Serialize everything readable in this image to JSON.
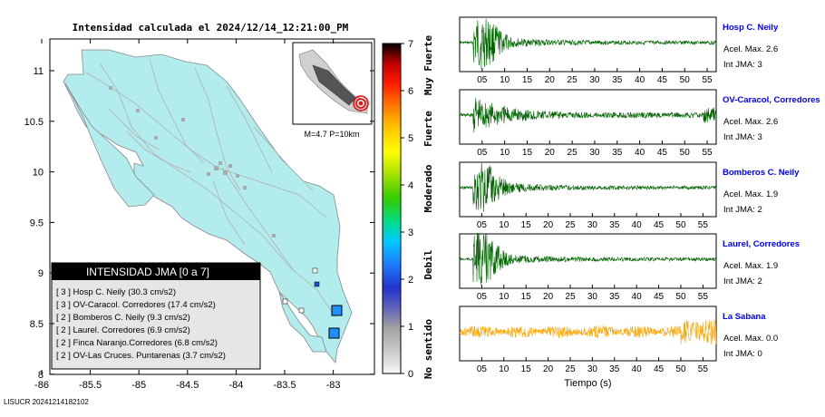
{
  "map": {
    "title": "Intensidad calculada el 2024/12/14_12:21:00_PM",
    "x_ticks": [
      "-86",
      "-85.5",
      "-85",
      "-84.5",
      "-84",
      "-83.5",
      "-83"
    ],
    "y_ticks": [
      "11",
      "10.5",
      "10",
      "9.5",
      "9",
      "8.5",
      "8"
    ],
    "inset_label": "M=4.7 P=10km",
    "legend_title": "INTENSIDAD JMA [0 a 7]",
    "legend_rows": [
      "[ 3 ]  Hosp C. Neily (30.3 cm/s2)",
      "[ 3 ]  OV-Caracol. Corredores (17.4 cm/s2)",
      "[ 2 ]  Bomberos C. Neily (9.3 cm/s2)",
      "[ 2 ]  Laurel. Corredores (6.9 cm/s2)",
      "[ 2 ]  Finca Naranjo.Corredores (6.8 cm/s2)",
      "[ 2 ]  OV-Las Cruces. Puntarenas (3.7 cm/s2)"
    ],
    "footer": "LISUCR 20241214182102",
    "colors": {
      "land": "#b3ecec",
      "roads": "#b0b0b0",
      "station": "#1e90ff"
    }
  },
  "colorbar": {
    "ticks": [
      "0",
      "1",
      "2",
      "3",
      "4",
      "5",
      "6",
      "7"
    ],
    "class_labels": [
      "No sentido",
      "Debil",
      "Moderado",
      "Fuerte",
      "Muy Fuerte"
    ]
  },
  "chart_data": [
    {
      "type": "line",
      "name": "Hosp C. Neily",
      "color": "#006400",
      "x_tick_labels": [
        "05",
        "10",
        "15",
        "20",
        "25",
        "30",
        "35",
        "40",
        "45",
        "50",
        "55"
      ],
      "xlim": [
        0,
        57
      ],
      "accel_text": "Acel. Max. 2.6",
      "jma_text": "Int JMA: 3"
    },
    {
      "type": "line",
      "name": "OV-Caracol, Corredores",
      "color": "#006400",
      "x_tick_labels": [
        "05",
        "10",
        "15",
        "20",
        "25",
        "30",
        "35",
        "40",
        "45",
        "50",
        "55"
      ],
      "xlim": [
        0,
        57
      ],
      "accel_text": "Acel. Max. 2.6",
      "jma_text": "Int JMA: 3"
    },
    {
      "type": "line",
      "name": "Bomberos C. Neily",
      "color": "#006400",
      "x_tick_labels": [
        "05",
        "10",
        "15",
        "20",
        "25",
        "30",
        "35",
        "40",
        "45",
        "50",
        "55"
      ],
      "xlim": [
        0,
        58
      ],
      "accel_text": "Acel. Max. 1.9",
      "jma_text": "Int JMA: 2"
    },
    {
      "type": "line",
      "name": "Laurel, Corredores",
      "color": "#006400",
      "x_tick_labels": [
        "05",
        "10",
        "15",
        "20",
        "25",
        "30",
        "35",
        "40",
        "45",
        "50",
        "55"
      ],
      "xlim": [
        0,
        58
      ],
      "accel_text": "Acel. Max. 1.9",
      "jma_text": "Int JMA: 2"
    },
    {
      "type": "line",
      "name": "La Sabana",
      "color": "#ffa500",
      "x_tick_labels": [
        "05",
        "10",
        "15",
        "20",
        "25",
        "30",
        "35",
        "40",
        "45",
        "50",
        "55"
      ],
      "xlim": [
        0,
        58
      ],
      "xlabel": "Tiempo (s)",
      "accel_text": "Acel. Max. 0.0",
      "jma_text": "Int JMA: 0"
    }
  ]
}
